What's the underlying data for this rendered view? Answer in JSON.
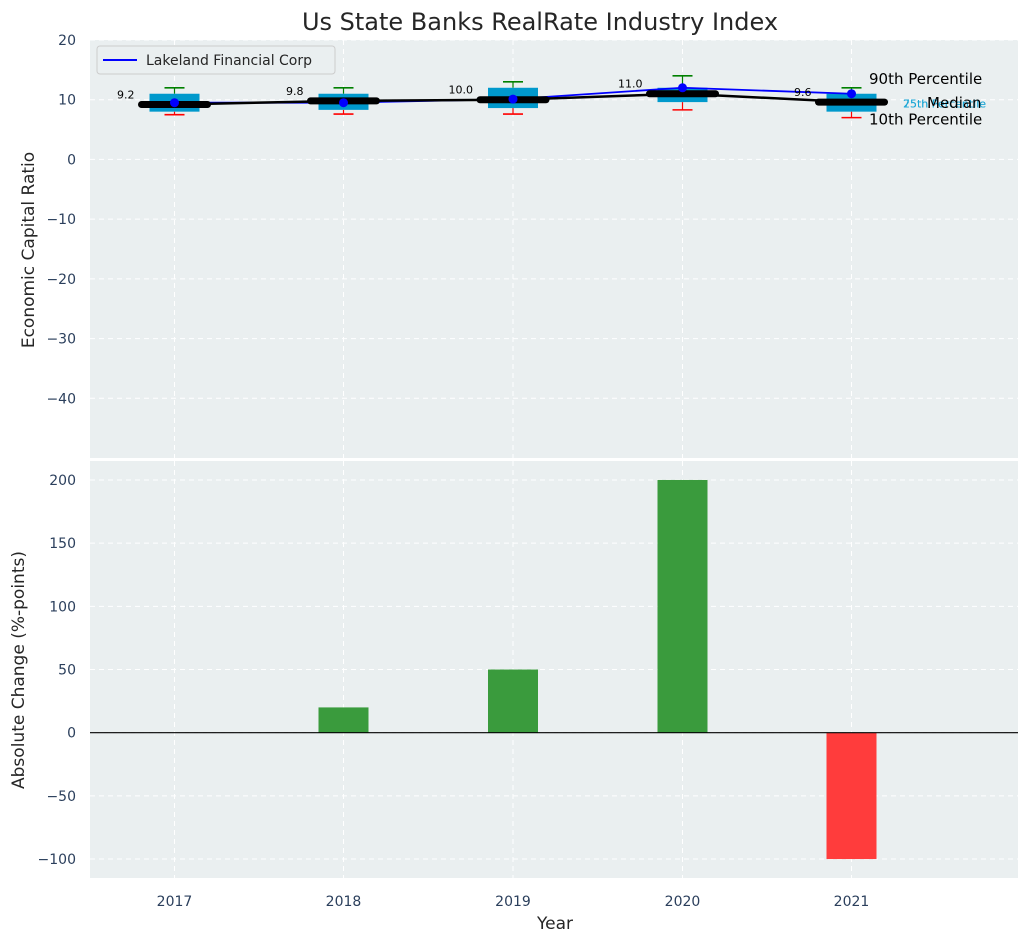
{
  "chart_data": [
    {
      "type": "box",
      "title": "Us State Banks RealRate Industry Index",
      "ylabel": "Economic Capital Ratio",
      "ylim": [
        -50,
        20
      ],
      "yticks": [
        20,
        10,
        0,
        -10,
        -20,
        -30,
        -40
      ],
      "ytick_labels": [
        "20",
        "10",
        "0",
        "−10",
        "−20",
        "−30",
        "−40"
      ],
      "categories": [
        "2017",
        "2018",
        "2019",
        "2020",
        "2021"
      ],
      "grid": true,
      "legend": {
        "position": "top-left",
        "entries": [
          "Lakeland Financial Corp"
        ]
      },
      "boxes": [
        {
          "category": "2017",
          "p10": 7.5,
          "p25": 8.0,
          "median": 9.2,
          "p75": 11.0,
          "p90": 12.0
        },
        {
          "category": "2018",
          "p10": 7.6,
          "p25": 8.3,
          "median": 9.8,
          "p75": 11.0,
          "p90": 12.0
        },
        {
          "category": "2019",
          "p10": 7.6,
          "p25": 8.6,
          "median": 10.0,
          "p75": 12.0,
          "p90": 13.0
        },
        {
          "category": "2020",
          "p10": 8.3,
          "p25": 9.6,
          "median": 11.0,
          "p75": 12.0,
          "p90": 14.0
        },
        {
          "category": "2021",
          "p10": 7.0,
          "p25": 8.0,
          "median": 9.6,
          "p75": 11.0,
          "p90": 12.0
        }
      ],
      "median_labels": [
        "9.2",
        "9.8",
        "10.0",
        "11.0",
        "9.6"
      ],
      "series": [
        {
          "name": "Lakeland Financial Corp",
          "color": "#0000ff",
          "values": [
            9.5,
            9.5,
            10.1,
            12.0,
            11.0
          ]
        },
        {
          "name": "Median",
          "color": "#000000",
          "values": [
            9.2,
            9.8,
            10.0,
            11.0,
            9.6
          ]
        }
      ],
      "annotations": {
        "p90": "90th Percentile",
        "p75": "75th Percentile",
        "median": "Median",
        "p25": "25th Percentile",
        "p10": "10th Percentile"
      },
      "colors": {
        "box": "#0099cc",
        "p90_whisker": "#008000",
        "p10_whisker": "#ff0000",
        "lakeland": "#0000ff",
        "median": "#000000",
        "percentile_label": "#1ea7d6",
        "background": "#eaeff0"
      }
    },
    {
      "type": "bar",
      "ylabel": "Absolute Change (%-points)",
      "xlabel": "Year",
      "ylim": [
        -115,
        215
      ],
      "yticks": [
        200,
        150,
        100,
        50,
        0,
        -50,
        -100
      ],
      "ytick_labels": [
        "200",
        "150",
        "100",
        "50",
        "0",
        "−50",
        "−100"
      ],
      "categories": [
        "2017",
        "2018",
        "2019",
        "2020",
        "2021"
      ],
      "values": [
        0,
        20,
        50,
        200,
        -100
      ],
      "grid": true,
      "colors": {
        "positive": "#3a9b3d",
        "negative": "#ff3c3c"
      }
    }
  ]
}
